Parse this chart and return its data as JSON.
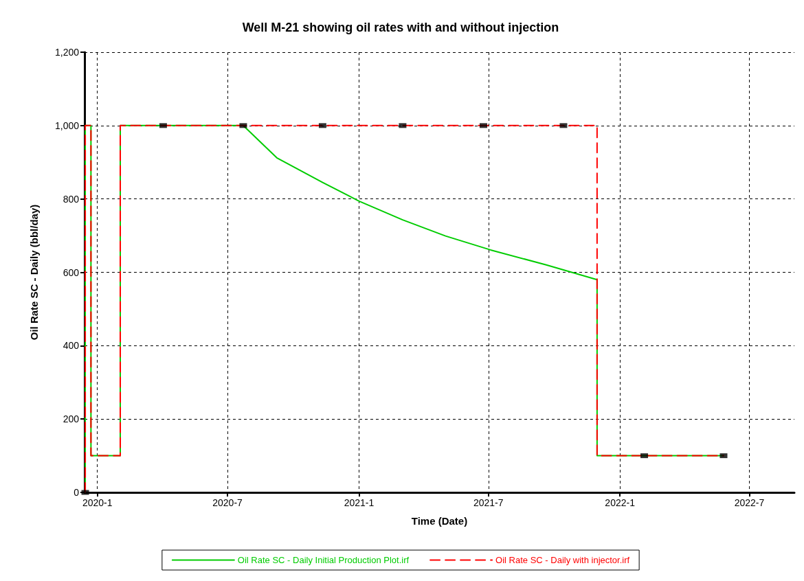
{
  "chart_data": {
    "type": "line",
    "title": "Well M-21 showing oil rates with and without injection",
    "xlabel": "Time (Date)",
    "ylabel": "Oil Rate SC - Daily (bbl/day)",
    "xlim": [
      "2019-12-14",
      "2022-09-02"
    ],
    "xticks": [
      {
        "value": "2020-01-01",
        "label": "2020-1"
      },
      {
        "value": "2020-07-01",
        "label": "2020-7"
      },
      {
        "value": "2021-01-01",
        "label": "2021-1"
      },
      {
        "value": "2021-07-01",
        "label": "2021-7"
      },
      {
        "value": "2022-01-01",
        "label": "2022-1"
      },
      {
        "value": "2022-07-01",
        "label": "2022-7"
      }
    ],
    "ylim": [
      0,
      1200
    ],
    "yticks": [
      {
        "value": 0,
        "label": "0"
      },
      {
        "value": 200,
        "label": "200"
      },
      {
        "value": 400,
        "label": "400"
      },
      {
        "value": 600,
        "label": "600"
      },
      {
        "value": 800,
        "label": "800"
      },
      {
        "value": 1000,
        "label": "1,000"
      },
      {
        "value": 1200,
        "label": "1,200"
      }
    ],
    "grid": true,
    "legend": "bottom",
    "series": [
      {
        "name": "Oil Rate SC - Daily Initial Production Plot.irf",
        "color": "#00cc00",
        "line_style": "solid",
        "marker": "none",
        "x": [
          "2019-12-15",
          "2019-12-15",
          "2019-12-23",
          "2019-12-23",
          "2020-02-02",
          "2020-02-02",
          "2020-07-23",
          "2020-09-08",
          "2020-11-11",
          "2021-01-01",
          "2021-03-03",
          "2021-05-02",
          "2021-07-04",
          "2021-09-20",
          "2021-11-30",
          "2021-11-30",
          "2022-05-26"
        ],
        "values": [
          0,
          1000,
          1000,
          100,
          100,
          1000,
          1000,
          912,
          845,
          794,
          743,
          699,
          661,
          620,
          580,
          100,
          100
        ]
      },
      {
        "name": "Oil Rate SC - Daily with injector.irf",
        "color": "#ff0000",
        "line_style": "dashed",
        "marker": "none",
        "x": [
          "2019-12-15",
          "2019-12-15",
          "2019-12-23",
          "2019-12-23",
          "2020-02-02",
          "2020-02-02",
          "2021-11-30",
          "2021-11-30",
          "2022-05-26"
        ],
        "values": [
          0,
          1000,
          1000,
          100,
          100,
          1000,
          1000,
          100,
          100
        ]
      },
      {
        "type": "scatter",
        "color": "#000000",
        "marker": "square",
        "x": [
          "2019-12-15",
          "2020-04-02",
          "2020-07-23",
          "2020-11-11",
          "2021-03-03",
          "2021-06-24",
          "2021-10-14",
          "2022-02-04",
          "2022-05-26"
        ],
        "values": [
          0,
          1000,
          1000,
          1000,
          1000,
          1000,
          1000,
          100,
          100
        ]
      }
    ]
  }
}
